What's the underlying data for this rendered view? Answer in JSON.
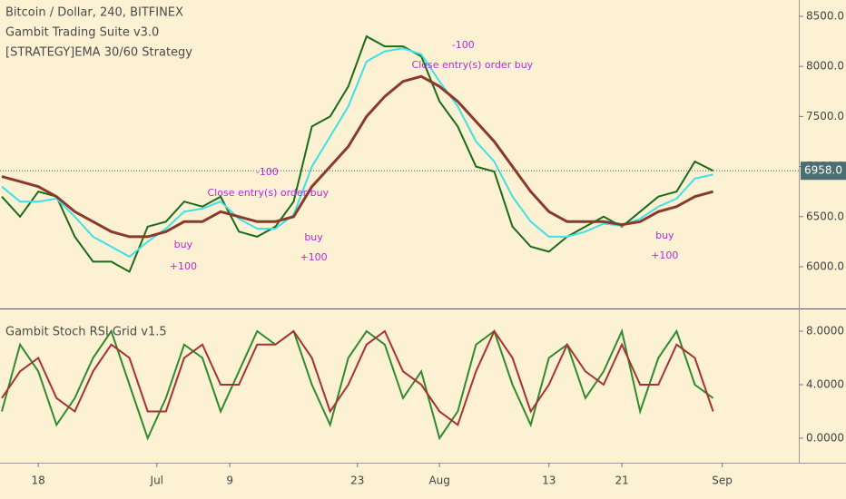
{
  "chart_data": [
    {
      "type": "line",
      "title": "Bitcoin / Dollar, 240, BITFINEX",
      "subtitle": [
        "Gambit Trading Suite v3.0",
        "[STRATEGY]EMA 30/60 Strategy"
      ],
      "x": [
        165,
        167,
        169,
        171,
        173,
        175,
        177,
        179,
        181,
        183,
        185,
        187,
        189,
        191,
        193,
        195,
        197,
        199,
        201,
        203,
        205,
        207,
        209,
        211,
        213,
        215,
        217,
        219,
        221,
        223,
        225,
        227,
        229,
        231,
        233,
        235,
        237,
        239,
        241,
        243
      ],
      "series": [
        {
          "color": "#1a6b1a",
          "values": [
            6700,
            6500,
            6750,
            6700,
            6300,
            6050,
            6050,
            5950,
            6400,
            6450,
            6650,
            6600,
            6700,
            6350,
            6300,
            6400,
            6650,
            7400,
            7500,
            7800,
            8300,
            8200,
            8200,
            8100,
            7650,
            7400,
            7000,
            6950,
            6400,
            6200,
            6150,
            6300,
            6400,
            6500,
            6400,
            6550,
            6700,
            6750,
            7050,
            6958
          ]
        },
        {
          "color": "#3fe0e8",
          "values": [
            6800,
            6650,
            6650,
            6680,
            6500,
            6300,
            6200,
            6100,
            6250,
            6380,
            6550,
            6580,
            6650,
            6480,
            6380,
            6380,
            6520,
            7000,
            7300,
            7600,
            8050,
            8150,
            8180,
            8120,
            7850,
            7600,
            7250,
            7050,
            6700,
            6450,
            6300,
            6300,
            6350,
            6430,
            6410,
            6480,
            6600,
            6680,
            6880,
            6920
          ]
        },
        {
          "color": "#8a3a2a",
          "values": [
            6900,
            6850,
            6800,
            6700,
            6550,
            6450,
            6350,
            6300,
            6300,
            6350,
            6450,
            6450,
            6550,
            6500,
            6450,
            6450,
            6500,
            6800,
            7000,
            7200,
            7500,
            7700,
            7850,
            7900,
            7800,
            7650,
            7450,
            7250,
            7000,
            6750,
            6550,
            6450,
            6450,
            6450,
            6420,
            6450,
            6550,
            6600,
            6700,
            6750
          ]
        }
      ],
      "annotations": [
        {
          "text": "buy",
          "x": 184.9,
          "y": 6217
        },
        {
          "text": "+100",
          "x": 184.9,
          "y": 5999
        },
        {
          "text": "-100",
          "x": 194.1,
          "y": 6942
        },
        {
          "text": "Close entry(s) order buy",
          "x": 194.2,
          "y": 6734
        },
        {
          "text": "buy",
          "x": 199.2,
          "y": 6290
        },
        {
          "text": "+100",
          "x": 199.2,
          "y": 6091
        },
        {
          "text": "-100",
          "x": 215.6,
          "y": 8210
        },
        {
          "text": "Close entry(s) order buy",
          "x": 216.6,
          "y": 8011
        },
        {
          "text": "buy",
          "x": 237.7,
          "y": 6308
        },
        {
          "text": "+100",
          "x": 237.7,
          "y": 6109
        }
      ],
      "last_price": {
        "value": 6958,
        "label": "6958.0"
      },
      "xlim": [
        164.8,
        252.4
      ],
      "ylim": [
        5583,
        8663
      ],
      "yticks": [
        {
          "value": 6000,
          "label": "6000.0"
        },
        {
          "value": 6500,
          "label": "6500.0"
        },
        {
          "value": 7000,
          "label": "7000.0"
        },
        {
          "value": 7500,
          "label": "7500.0"
        },
        {
          "value": 8000,
          "label": "8000.0"
        },
        {
          "value": 8500,
          "label": "8500.0"
        }
      ]
    },
    {
      "type": "line",
      "title": "Gambit Stoch RSI Grid v1.5",
      "x": [
        165,
        167,
        169,
        171,
        173,
        175,
        177,
        179,
        181,
        183,
        185,
        187,
        189,
        191,
        193,
        195,
        197,
        199,
        201,
        203,
        205,
        207,
        209,
        211,
        213,
        215,
        217,
        219,
        221,
        223,
        225,
        227,
        229,
        231,
        233,
        235,
        237,
        239,
        241,
        243
      ],
      "series": [
        {
          "color": "#2e8b2e",
          "values": [
            2,
            7,
            5,
            1,
            3,
            6,
            8,
            4,
            0,
            3,
            7,
            6,
            2,
            5,
            8,
            7,
            8,
            4,
            1,
            6,
            8,
            7,
            3,
            5,
            0,
            2,
            7,
            8,
            4,
            1,
            6,
            7,
            3,
            5,
            8,
            2,
            6,
            8,
            4,
            3
          ]
        },
        {
          "color": "#a83232",
          "values": [
            3,
            5,
            6,
            3,
            2,
            5,
            7,
            6,
            2,
            2,
            6,
            7,
            4,
            4,
            7,
            7,
            8,
            6,
            2,
            4,
            7,
            8,
            5,
            4,
            2,
            1,
            5,
            8,
            6,
            2,
            4,
            7,
            5,
            4,
            7,
            4,
            4,
            7,
            6,
            2
          ]
        }
      ],
      "xlim": [
        164.8,
        252.4
      ],
      "ylim": [
        -1.83,
        9.56
      ],
      "yticks": [
        {
          "value": 0,
          "label": "0.0000"
        },
        {
          "value": 4,
          "label": "4.0000"
        },
        {
          "value": 8,
          "label": "8.0000"
        }
      ],
      "xticks": [
        {
          "value": 169,
          "label": "18"
        },
        {
          "value": 182,
          "label": "Jul"
        },
        {
          "value": 190,
          "label": "9"
        },
        {
          "value": 204,
          "label": "23"
        },
        {
          "value": 213,
          "label": "Aug"
        },
        {
          "value": 225,
          "label": "13"
        },
        {
          "value": 233,
          "label": "21"
        },
        {
          "value": 244,
          "label": "Sep"
        }
      ]
    }
  ]
}
